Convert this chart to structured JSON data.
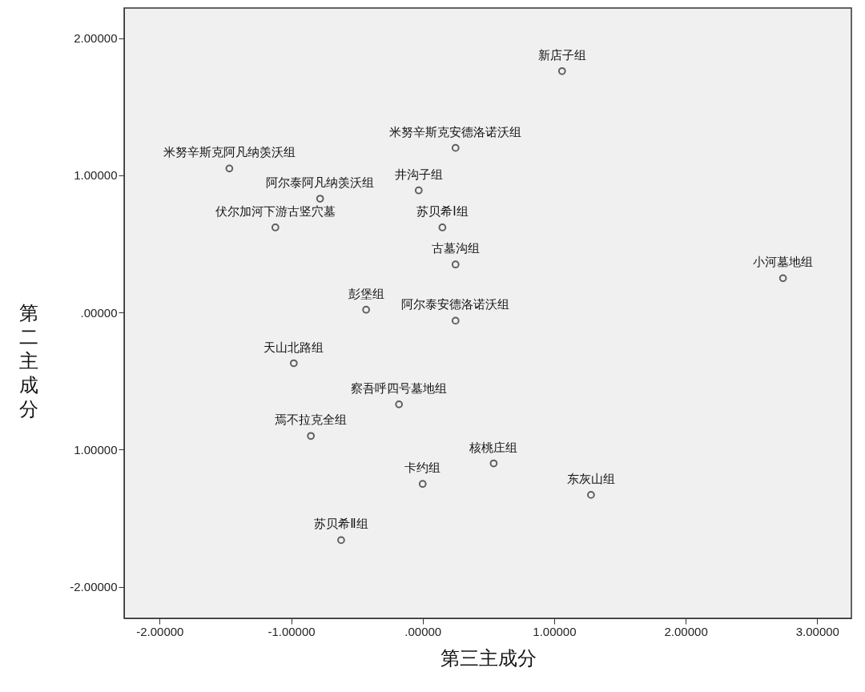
{
  "chart_data": {
    "type": "scatter",
    "xlabel": "第三主成分",
    "ylabel": "第二主成分",
    "xlim": [
      -2.27,
      3.26
    ],
    "ylim": [
      -2.23,
      2.22
    ],
    "xticks": [
      {
        "value": -2,
        "label": "-2.00000"
      },
      {
        "value": -1,
        "label": "-1.00000"
      },
      {
        "value": 0,
        "label": ".00000"
      },
      {
        "value": 1,
        "label": "1.00000"
      },
      {
        "value": 2,
        "label": "2.00000"
      },
      {
        "value": 3,
        "label": "3.00000"
      }
    ],
    "yticks": [
      {
        "value": -2,
        "label": "-2.00000"
      },
      {
        "value": -1,
        "label": "1.00000"
      },
      {
        "value": 0,
        "label": ".00000"
      },
      {
        "value": 1,
        "label": "1.00000"
      },
      {
        "value": 2,
        "label": "2.00000"
      }
    ],
    "grid": false,
    "marker": "circle",
    "series": [
      {
        "color": "#222222",
        "x": [
          1.06,
          0.25,
          -1.47,
          -0.78,
          -0.03,
          -1.12,
          0.15,
          0.25,
          2.74,
          -0.43,
          0.25,
          -0.98,
          -0.18,
          -0.85,
          0.54,
          0.0,
          1.28,
          -0.62
        ],
        "values": [
          1.76,
          1.2,
          1.05,
          0.83,
          0.89,
          0.62,
          0.62,
          0.35,
          0.25,
          0.02,
          -0.06,
          -0.37,
          -0.67,
          -0.9,
          -1.1,
          -1.25,
          -1.33,
          -1.66
        ]
      }
    ],
    "annotations": [
      {
        "text": "新店子组",
        "x": 1.06,
        "y": 1.76
      },
      {
        "text": "米努辛斯克安德洛诺沃组",
        "x": 0.25,
        "y": 1.2
      },
      {
        "text": "米努辛斯克阿凡纳羡沃组",
        "x": -1.47,
        "y": 1.05
      },
      {
        "text": "阿尔泰阿凡纳羡沃组",
        "x": -0.78,
        "y": 0.83
      },
      {
        "text": "井沟子组",
        "x": -0.03,
        "y": 0.89
      },
      {
        "text": "伏尔加河下游古竖穴墓",
        "x": -1.12,
        "y": 0.62
      },
      {
        "text": "苏贝希Ⅰ组",
        "x": 0.15,
        "y": 0.62
      },
      {
        "text": "古墓沟组",
        "x": 0.25,
        "y": 0.35
      },
      {
        "text": "小河墓地组",
        "x": 2.74,
        "y": 0.25
      },
      {
        "text": "彭堡组",
        "x": -0.43,
        "y": 0.02
      },
      {
        "text": "阿尔泰安德洛诺沃组",
        "x": 0.25,
        "y": -0.06
      },
      {
        "text": "天山北路组",
        "x": -0.98,
        "y": -0.37
      },
      {
        "text": "察吾呼四号墓地组",
        "x": -0.18,
        "y": -0.67
      },
      {
        "text": "焉不拉克全组",
        "x": -0.85,
        "y": -0.9
      },
      {
        "text": "核桃庄组",
        "x": 0.54,
        "y": -1.1
      },
      {
        "text": "卡约组",
        "x": 0.0,
        "y": -1.25
      },
      {
        "text": "东灰山组",
        "x": 1.28,
        "y": -1.33
      },
      {
        "text": "苏贝希Ⅱ组",
        "x": -0.62,
        "y": -1.66
      }
    ]
  }
}
